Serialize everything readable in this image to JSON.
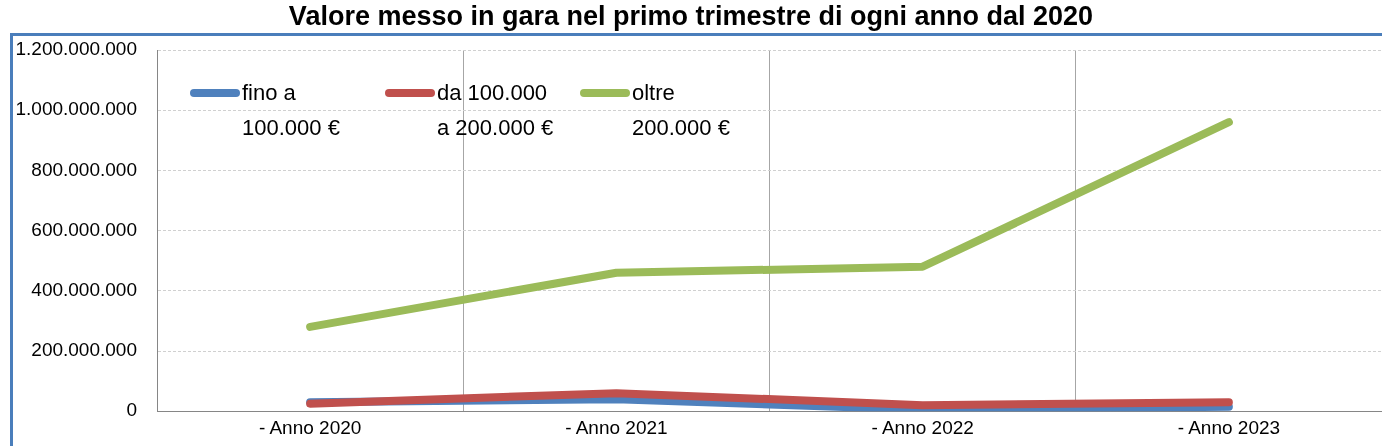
{
  "chart_data": {
    "type": "line",
    "title": "Valore messo in gara nel primo trimestre di ogni anno dal 2020",
    "categories": [
      "- Anno 2020",
      "- Anno 2021",
      "- Anno 2022",
      "- Anno 2023"
    ],
    "series": [
      {
        "name": "fino a 100.000 €",
        "color": "#4f81bd",
        "values": [
          30000000,
          40000000,
          5000000,
          15000000
        ]
      },
      {
        "name": "da 100.000 a 200.000 €",
        "color": "#c0504d",
        "values": [
          25000000,
          60000000,
          20000000,
          30000000
        ]
      },
      {
        "name": "oltre 200.000 €",
        "color": "#9bbb59",
        "values": [
          280000000,
          460000000,
          480000000,
          960000000
        ]
      }
    ],
    "ylim": [
      0,
      1200000000
    ],
    "yticks": [
      0,
      {
        "value": 200000000,
        "label": "200.000.000"
      },
      {
        "value": 400000000,
        "label": "400.000.000"
      },
      {
        "value": 600000000,
        "label": "600.000.000"
      },
      {
        "value": 800000000,
        "label": "800.000.000"
      },
      {
        "value": 1000000000,
        "label": "1.000.000.000"
      },
      {
        "value": 1200000000,
        "label": "1.200.000.000"
      }
    ],
    "grid": true,
    "legend": "top left",
    "marker": "none",
    "line_style": "solid"
  }
}
